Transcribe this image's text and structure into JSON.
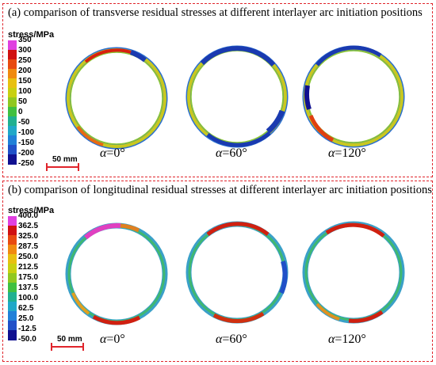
{
  "panel_a": {
    "title": "(a)  comparison of transverse residual stresses at different interlayer arc initiation positions",
    "legend_title": "stress/MPa",
    "ticks": [
      "350",
      "300",
      "250",
      "200",
      "150",
      "100",
      "50",
      "0",
      "-50",
      "-100",
      "-150",
      "-200",
      "-250"
    ],
    "scale_bar": "50 mm",
    "angles": [
      "=0°",
      "=60°",
      "=120°"
    ]
  },
  "panel_b": {
    "title": "(b)  comparison of longitudinal residual stresses at different interlayer arc initiation positions",
    "legend_title": "stress/MPa",
    "ticks": [
      "400.0",
      "362.5",
      "325.0",
      "287.5",
      "250.0",
      "212.5",
      "175.0",
      "137.5",
      "100.0",
      "62.5",
      "25.0",
      "-12.5",
      "-50.0"
    ],
    "scale_bar": "50 mm",
    "angles": [
      "=0°",
      "=60°",
      "=120°"
    ]
  },
  "alpha_symbol": "α",
  "colors": {
    "frame": "#e0242b",
    "colormap_top_to_bottom": [
      "#e040e0",
      "#d01010",
      "#e84a10",
      "#f08a10",
      "#e8c010",
      "#c8d010",
      "#90c820",
      "#40c040",
      "#20b090",
      "#20a8c8",
      "#2080d8",
      "#2050c8",
      "#101090"
    ]
  }
}
